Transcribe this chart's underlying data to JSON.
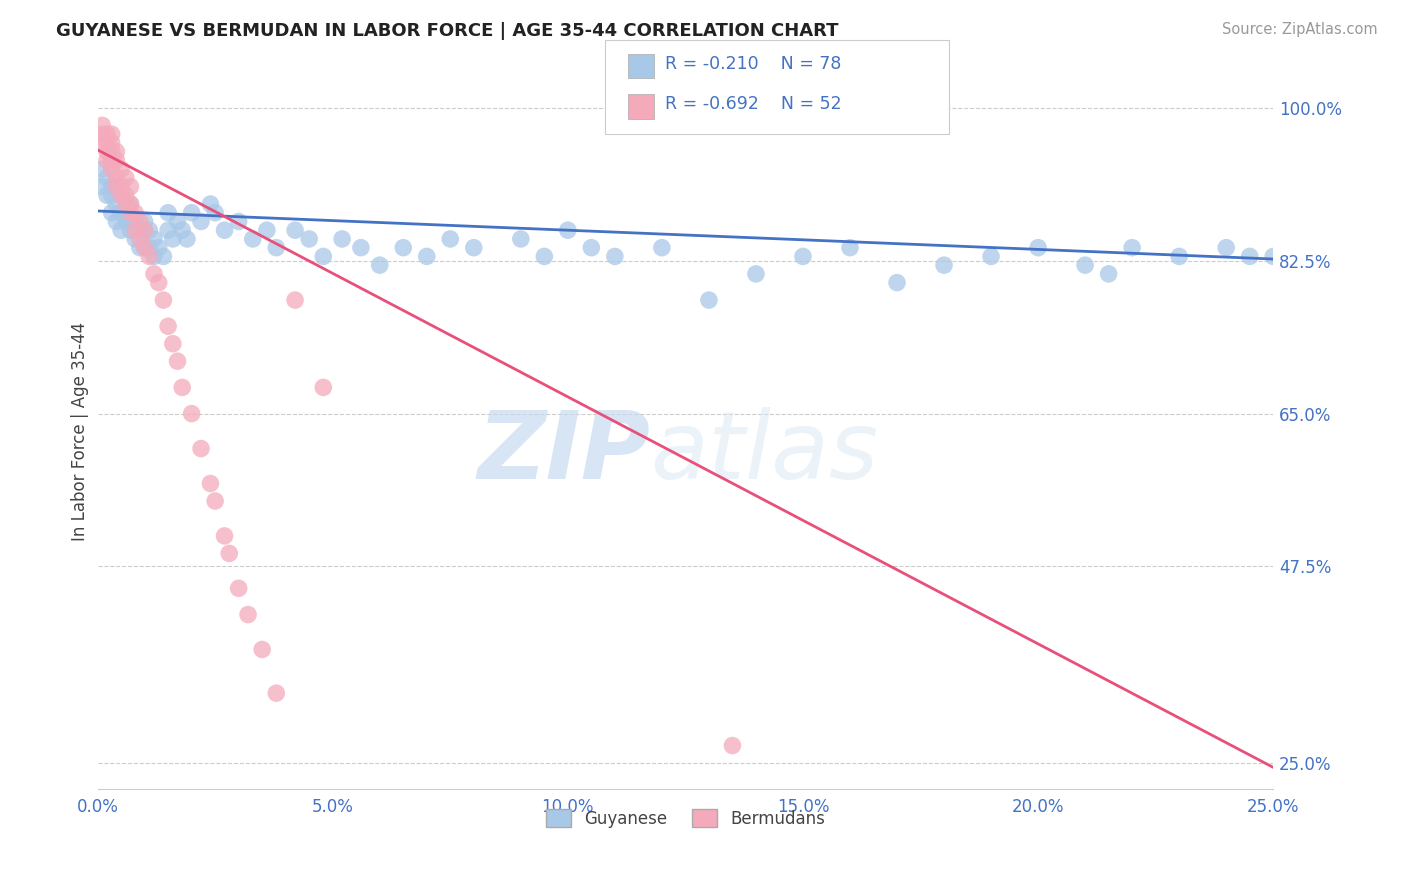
{
  "title": "GUYANESE VS BERMUDAN IN LABOR FORCE | AGE 35-44 CORRELATION CHART",
  "source_text": "Source: ZipAtlas.com",
  "ylabel": "In Labor Force | Age 35-44",
  "xlim": [
    0.0,
    0.25
  ],
  "ylim": [
    0.22,
    1.04
  ],
  "xticks": [
    0.0,
    0.05,
    0.1,
    0.15,
    0.2,
    0.25
  ],
  "xticklabels": [
    "0.0%",
    "5.0%",
    "10.0%",
    "15.0%",
    "20.0%",
    "25.0%"
  ],
  "yticks": [
    0.25,
    0.475,
    0.65,
    0.825,
    1.0
  ],
  "yticklabels": [
    "25.0%",
    "47.5%",
    "65.0%",
    "82.5%",
    "100.0%"
  ],
  "blue_R": -0.21,
  "blue_N": 78,
  "pink_R": -0.692,
  "pink_N": 52,
  "blue_color": "#a8c8e8",
  "pink_color": "#f4aabb",
  "blue_line_color": "#4472c4",
  "pink_line_color": "#e8507a",
  "watermark_zip": "ZIP",
  "watermark_atlas": "atlas",
  "legend_label_blue": "Guyanese",
  "legend_label_pink": "Bermudans",
  "blue_line_x0": 0.0,
  "blue_line_y0": 0.882,
  "blue_line_x1": 0.25,
  "blue_line_y1": 0.827,
  "pink_line_x0": 0.0,
  "pink_line_y0": 0.952,
  "pink_line_x1": 0.25,
  "pink_line_y1": 0.245,
  "blue_scatter_x": [
    0.001,
    0.001,
    0.002,
    0.002,
    0.003,
    0.003,
    0.003,
    0.003,
    0.004,
    0.004,
    0.004,
    0.005,
    0.005,
    0.005,
    0.006,
    0.006,
    0.007,
    0.007,
    0.007,
    0.008,
    0.008,
    0.009,
    0.009,
    0.01,
    0.01,
    0.01,
    0.011,
    0.011,
    0.012,
    0.012,
    0.013,
    0.014,
    0.015,
    0.015,
    0.016,
    0.017,
    0.018,
    0.019,
    0.02,
    0.022,
    0.024,
    0.025,
    0.027,
    0.03,
    0.033,
    0.036,
    0.038,
    0.042,
    0.045,
    0.048,
    0.052,
    0.056,
    0.06,
    0.065,
    0.07,
    0.075,
    0.08,
    0.09,
    0.095,
    0.1,
    0.105,
    0.11,
    0.12,
    0.13,
    0.14,
    0.15,
    0.16,
    0.17,
    0.18,
    0.19,
    0.2,
    0.21,
    0.215,
    0.22,
    0.23,
    0.24,
    0.245,
    0.25
  ],
  "blue_scatter_y": [
    0.91,
    0.93,
    0.9,
    0.92,
    0.88,
    0.9,
    0.91,
    0.94,
    0.87,
    0.89,
    0.91,
    0.86,
    0.88,
    0.9,
    0.87,
    0.89,
    0.86,
    0.87,
    0.89,
    0.85,
    0.87,
    0.84,
    0.86,
    0.84,
    0.86,
    0.87,
    0.84,
    0.86,
    0.83,
    0.85,
    0.84,
    0.83,
    0.86,
    0.88,
    0.85,
    0.87,
    0.86,
    0.85,
    0.88,
    0.87,
    0.89,
    0.88,
    0.86,
    0.87,
    0.85,
    0.86,
    0.84,
    0.86,
    0.85,
    0.83,
    0.85,
    0.84,
    0.82,
    0.84,
    0.83,
    0.85,
    0.84,
    0.85,
    0.83,
    0.86,
    0.84,
    0.83,
    0.84,
    0.78,
    0.81,
    0.83,
    0.84,
    0.8,
    0.82,
    0.83,
    0.84,
    0.82,
    0.81,
    0.84,
    0.83,
    0.84,
    0.83,
    0.83
  ],
  "pink_scatter_x": [
    0.001,
    0.001,
    0.001,
    0.002,
    0.002,
    0.002,
    0.002,
    0.003,
    0.003,
    0.003,
    0.003,
    0.003,
    0.004,
    0.004,
    0.004,
    0.004,
    0.005,
    0.005,
    0.005,
    0.006,
    0.006,
    0.006,
    0.007,
    0.007,
    0.007,
    0.008,
    0.008,
    0.009,
    0.009,
    0.01,
    0.01,
    0.011,
    0.012,
    0.013,
    0.014,
    0.015,
    0.016,
    0.017,
    0.018,
    0.02,
    0.022,
    0.024,
    0.025,
    0.027,
    0.028,
    0.03,
    0.032,
    0.035,
    0.038,
    0.042,
    0.048,
    0.135
  ],
  "pink_scatter_y": [
    0.96,
    0.97,
    0.98,
    0.94,
    0.95,
    0.96,
    0.97,
    0.93,
    0.94,
    0.95,
    0.96,
    0.97,
    0.91,
    0.92,
    0.94,
    0.95,
    0.9,
    0.91,
    0.93,
    0.89,
    0.9,
    0.92,
    0.88,
    0.89,
    0.91,
    0.86,
    0.88,
    0.85,
    0.87,
    0.84,
    0.86,
    0.83,
    0.81,
    0.8,
    0.78,
    0.75,
    0.73,
    0.71,
    0.68,
    0.65,
    0.61,
    0.57,
    0.55,
    0.51,
    0.49,
    0.45,
    0.42,
    0.38,
    0.33,
    0.78,
    0.68,
    0.27
  ]
}
